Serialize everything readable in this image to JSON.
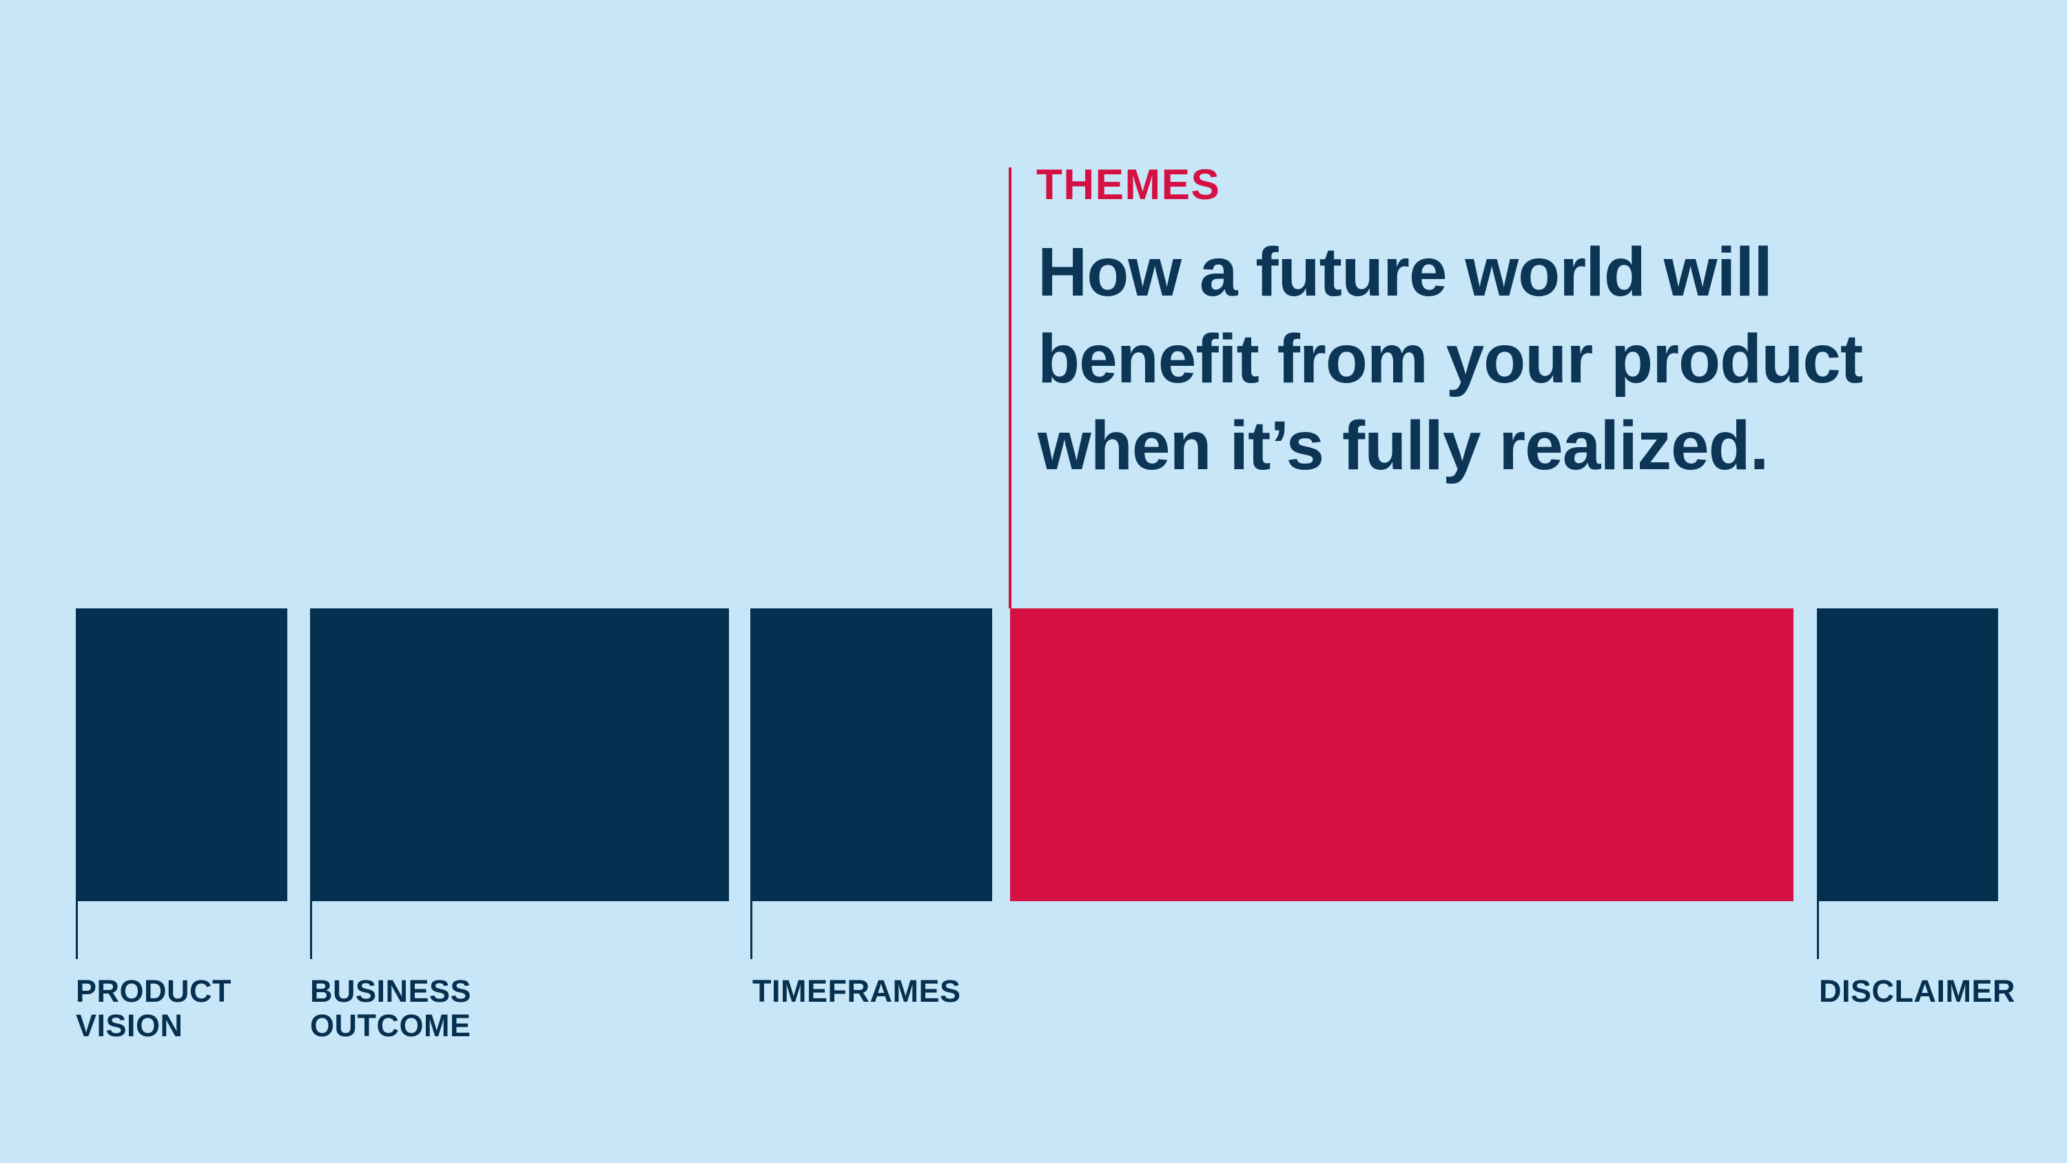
{
  "colors": {
    "background": "#c7e6f8",
    "navy": "#06304f",
    "crimson": "#d51144",
    "heading_navy": "#0c3556"
  },
  "callout": {
    "label": "THEMES",
    "heading": "How a future world will\nbenefit from your product\nwhen it’s fully realized."
  },
  "blocks": [
    {
      "id": "product-vision",
      "label": "PRODUCT\nVISION",
      "color": "navy"
    },
    {
      "id": "business-outcome",
      "label": "BUSINESS\nOUTCOME",
      "color": "navy"
    },
    {
      "id": "timeframes",
      "label": "TIMEFRAMES",
      "color": "navy"
    },
    {
      "id": "themes",
      "label": "THEMES",
      "color": "crimson"
    },
    {
      "id": "disclaimer",
      "label": "DISCLAIMER",
      "color": "navy"
    }
  ]
}
